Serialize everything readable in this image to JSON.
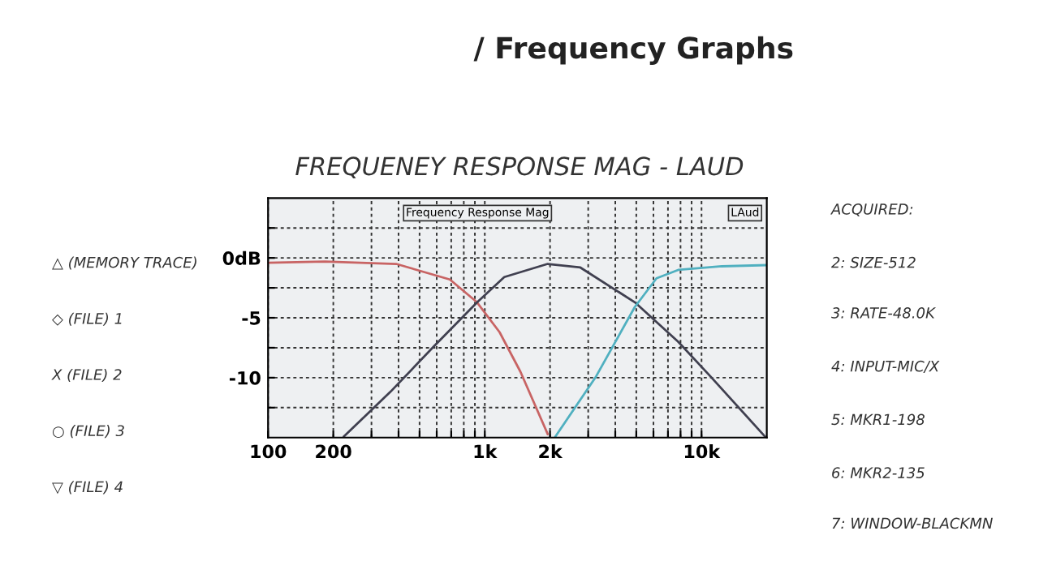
{
  "chart_data": {
    "type": "line",
    "title": "/ Frequency Graphs",
    "subtitle": "FREQUENEY RESPONSE MAG - LAUD",
    "series": [
      {
        "color": "#c86464",
        "x": [
          100,
          183,
          390,
          690,
          920,
          1170,
          1460,
          1950
        ],
        "values": [
          -0.4,
          -0.3,
          -0.5,
          -1.8,
          -3.7,
          -6.2,
          -9.5,
          -14.7
        ]
      },
      {
        "color": "#404050",
        "x": [
          224,
          366,
          581,
          923,
          1230,
          1950,
          2760,
          4920,
          7800,
          11000,
          19600
        ],
        "values": [
          -14.9,
          -11.2,
          -7.4,
          -3.7,
          -1.6,
          -0.5,
          -0.8,
          -3.7,
          -7,
          -9.9,
          -14.9
        ]
      },
      {
        "color": "#50b0c0",
        "x": [
          2120,
          3260,
          4920,
          6200,
          7800,
          12400,
          20000
        ],
        "values": [
          -14.9,
          -9.9,
          -4.1,
          -1.7,
          -1.0,
          -0.7,
          -0.6
        ]
      }
    ],
    "log": "x",
    "xlim": [
      100,
      20000
    ],
    "ylim": [
      -15,
      5
    ],
    "xticks": [
      100,
      200,
      {
        "value": 300,
        "label": null
      },
      {
        "value": 400,
        "label": null
      },
      {
        "value": 500,
        "label": null
      },
      {
        "value": 600,
        "label": null
      },
      {
        "value": 700,
        "label": null
      },
      {
        "value": 800,
        "label": null
      },
      {
        "value": 900,
        "label": null
      },
      {
        "value": 1000,
        "label": "1k"
      },
      {
        "value": 2000,
        "label": "2k"
      },
      {
        "value": 3000,
        "label": null
      },
      {
        "value": 4000,
        "label": null
      },
      {
        "value": 5000,
        "label": null
      },
      {
        "value": 6000,
        "label": null
      },
      {
        "value": 7000,
        "label": null
      },
      {
        "value": 8000,
        "label": null
      },
      {
        "value": 9000,
        "label": null
      },
      {
        "value": 10000,
        "label": "10k"
      }
    ],
    "yticks": [
      {
        "value": 2.5,
        "label": null
      },
      {
        "value": 0,
        "label": "0dB"
      },
      {
        "value": -2.5,
        "label": null
      },
      -5,
      {
        "value": -7.5,
        "label": null
      },
      -10,
      {
        "value": -12.5,
        "label": null
      }
    ],
    "grid": true,
    "line_style": "solid",
    "marker": "none",
    "annotations": [
      "Frequency Response Mag",
      "LAud",
      "△ (MEMORY TRACE)",
      "◇ (FILE) 1",
      "X (FILE) 2",
      "○ (FILE) 3",
      "▽ (FILE) 4",
      "ACQUIRED:",
      "2: SIZE-512",
      "3: RATE-48.0K",
      "4: INPUT-MIC/X",
      "5: MKR1-198",
      "6: MKR2-135",
      "7: WINDOW-BLACKMN"
    ]
  }
}
